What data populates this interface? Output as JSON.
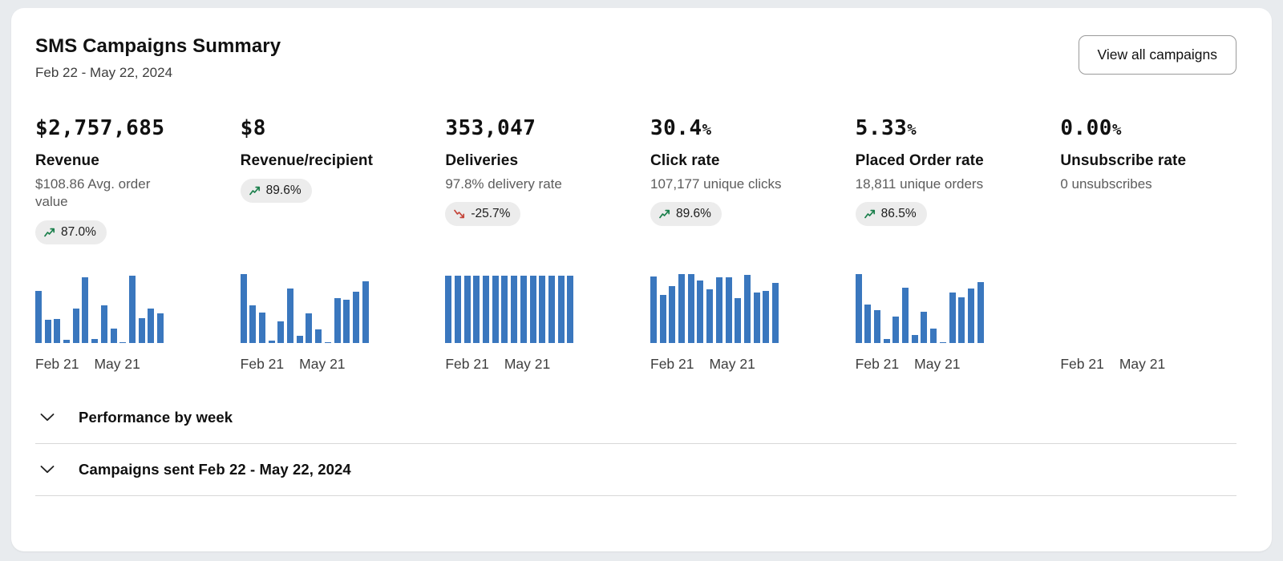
{
  "theme": {
    "bar_color": "#3a77be",
    "trend_up_color": "#1a7f4b",
    "trend_down_color": "#c4453a",
    "badge_bg": "#ececec",
    "card_bg": "#ffffff",
    "page_bg": "#e8ebee"
  },
  "header": {
    "title": "SMS Campaigns Summary",
    "date_range": "Feb 22 - May 22, 2024",
    "view_all_label": "View all campaigns"
  },
  "axis": {
    "start": "Feb 21",
    "end": "May 21"
  },
  "metrics": [
    {
      "value": "$2,757,685",
      "suffix": "",
      "label": "Revenue",
      "subtext": "$108.86 Avg. order value",
      "change": "87.0%",
      "direction": "up"
    },
    {
      "value": "$8",
      "suffix": "",
      "label": "Revenue/recipient",
      "subtext": "",
      "change": "89.6%",
      "direction": "up"
    },
    {
      "value": "353,047",
      "suffix": "",
      "label": "Deliveries",
      "subtext": "97.8% delivery rate",
      "change": "-25.7%",
      "direction": "down"
    },
    {
      "value": "30.4",
      "suffix": "%",
      "label": "Click rate",
      "subtext": "107,177 unique clicks",
      "change": "89.6%",
      "direction": "up"
    },
    {
      "value": "5.33",
      "suffix": "%",
      "label": "Placed Order rate",
      "subtext": "18,811 unique orders",
      "change": "86.5%",
      "direction": "up"
    },
    {
      "value": "0.00",
      "suffix": "%",
      "label": "Unsubscribe rate",
      "subtext": "0 unsubscribes",
      "change": "",
      "direction": "none"
    }
  ],
  "chart_data": [
    {
      "type": "bar",
      "title": "Revenue weekly sparkline",
      "x_start": "Feb 21",
      "x_end": "May 21",
      "values": [
        68,
        30,
        32,
        4,
        45,
        86,
        5,
        49,
        19,
        1,
        88,
        33,
        45,
        39
      ],
      "ylim": [
        0,
        100
      ],
      "grid": false
    },
    {
      "type": "bar",
      "title": "Revenue/recipient weekly sparkline",
      "x_start": "Feb 21",
      "x_end": "May 21",
      "values": [
        90,
        49,
        40,
        3,
        28,
        72,
        9,
        39,
        18,
        1,
        59,
        57,
        67,
        81
      ],
      "ylim": [
        0,
        100
      ],
      "grid": false
    },
    {
      "type": "bar",
      "title": "Deliveries weekly sparkline",
      "x_start": "Feb 21",
      "x_end": "May 21",
      "values": [
        88,
        88,
        88,
        88,
        88,
        88,
        88,
        88,
        88,
        88,
        88,
        88,
        88,
        88
      ],
      "ylim": [
        0,
        100
      ],
      "grid": false
    },
    {
      "type": "bar",
      "title": "Click rate weekly sparkline",
      "x_start": "Feb 21",
      "x_end": "May 21",
      "values": [
        87,
        63,
        75,
        90,
        91,
        82,
        71,
        86,
        86,
        59,
        89,
        66,
        68,
        79
      ],
      "ylim": [
        0,
        100
      ],
      "grid": false
    },
    {
      "type": "bar",
      "title": "Placed Order rate weekly sparkline",
      "x_start": "Feb 21",
      "x_end": "May 21",
      "values": [
        91,
        50,
        43,
        5,
        35,
        73,
        10,
        41,
        19,
        1,
        66,
        60,
        72,
        80
      ],
      "ylim": [
        0,
        100
      ],
      "grid": false
    },
    {
      "type": "bar",
      "title": "Unsubscribe rate weekly sparkline",
      "x_start": "Feb 21",
      "x_end": "May 21",
      "values": [
        0,
        0,
        0,
        0,
        0,
        0,
        0,
        0,
        0,
        0,
        0,
        0,
        0,
        0
      ],
      "ylim": [
        0,
        100
      ],
      "grid": false
    }
  ],
  "sections": [
    {
      "label": "Performance by week"
    },
    {
      "label": "Campaigns sent Feb 22 - May 22, 2024"
    }
  ]
}
